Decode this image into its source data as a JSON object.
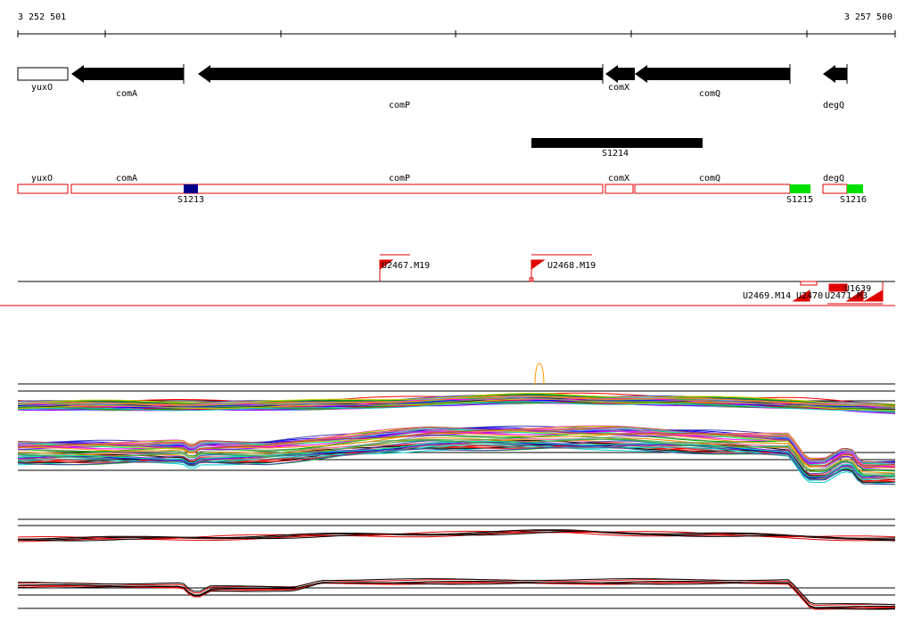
{
  "ruler": {
    "start": "3 252 501",
    "end": "3 257 500"
  },
  "genes": [
    {
      "label": "yuxO"
    },
    {
      "label": "comA"
    },
    {
      "label": "comP"
    },
    {
      "label": "comX"
    },
    {
      "label": "comQ"
    },
    {
      "label": "degQ"
    }
  ],
  "segment_track": {
    "label": "S1214"
  },
  "annotation_track": {
    "genes": [
      "yuxO",
      "comA",
      "comP",
      "comX",
      "comQ",
      "degQ"
    ],
    "markers": [
      "S1213",
      "S1215",
      "S1216"
    ]
  },
  "features": [
    "U2467.M19",
    "U2468.M19",
    "U2469.M14",
    "U2470",
    "U2471.M3",
    "U1639"
  ]
}
